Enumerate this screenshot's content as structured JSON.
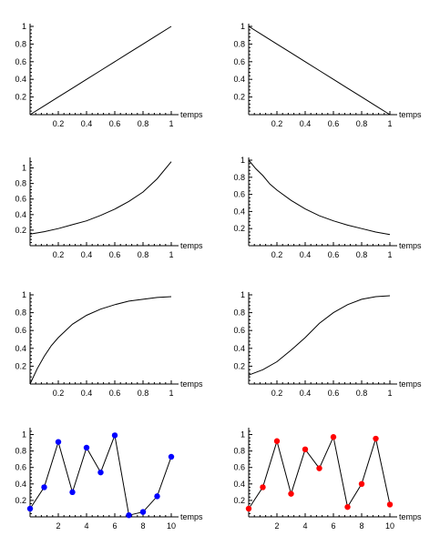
{
  "chart_data": [
    {
      "type": "line",
      "xlabel": "temps",
      "xlim": [
        0,
        1
      ],
      "ylim": [
        0,
        1
      ],
      "x_ticks": [
        0.2,
        0.4,
        0.6,
        0.8,
        1
      ],
      "x_tick_labels": [
        "0.2",
        "0.4",
        "0.6",
        "0.8",
        "1"
      ],
      "y_ticks": [
        0.2,
        0.4,
        0.6,
        0.8,
        1
      ],
      "y_tick_labels": [
        "0.2",
        "0.4",
        "0.6",
        "0.8",
        "1"
      ],
      "x": [
        0,
        0.1,
        0.2,
        0.3,
        0.4,
        0.5,
        0.6,
        0.7,
        0.8,
        0.9,
        1
      ],
      "y": [
        0,
        0.1,
        0.2,
        0.3,
        0.4,
        0.5,
        0.6,
        0.7,
        0.8,
        0.9,
        1
      ]
    },
    {
      "type": "line",
      "xlabel": "temps",
      "xlim": [
        0,
        1
      ],
      "ylim": [
        0,
        1
      ],
      "x_ticks": [
        0.2,
        0.4,
        0.6,
        0.8,
        1
      ],
      "x_tick_labels": [
        "0.2",
        "0.4",
        "0.6",
        "0.8",
        "1"
      ],
      "y_ticks": [
        0.2,
        0.4,
        0.6,
        0.8,
        1
      ],
      "y_tick_labels": [
        "0.2",
        "0.4",
        "0.6",
        "0.8",
        "1"
      ],
      "x": [
        0,
        0.1,
        0.2,
        0.3,
        0.4,
        0.5,
        0.6,
        0.7,
        0.8,
        0.9,
        1
      ],
      "y": [
        1,
        0.9,
        0.8,
        0.7,
        0.6,
        0.5,
        0.4,
        0.3,
        0.2,
        0.1,
        0
      ]
    },
    {
      "type": "line",
      "xlabel": "temps",
      "xlim": [
        0,
        1
      ],
      "ylim": [
        0,
        1.1
      ],
      "x_ticks": [
        0.2,
        0.4,
        0.6,
        0.8,
        1
      ],
      "x_tick_labels": [
        "0.2",
        "0.4",
        "0.6",
        "0.8",
        "1"
      ],
      "y_ticks": [
        0.2,
        0.4,
        0.6,
        0.8,
        1
      ],
      "y_tick_labels": [
        "0.2",
        "0.4",
        "0.6",
        "0.8",
        "1"
      ],
      "x": [
        0,
        0.1,
        0.2,
        0.3,
        0.4,
        0.5,
        0.6,
        0.7,
        0.8,
        0.9,
        1
      ],
      "y": [
        0.15,
        0.18,
        0.22,
        0.27,
        0.32,
        0.39,
        0.47,
        0.57,
        0.69,
        0.86,
        1.08
      ]
    },
    {
      "type": "line",
      "xlabel": "temps",
      "xlim": [
        0,
        1
      ],
      "ylim": [
        0,
        1
      ],
      "x_ticks": [
        0.2,
        0.4,
        0.6,
        0.8,
        1
      ],
      "x_tick_labels": [
        "0.2",
        "0.4",
        "0.6",
        "0.8",
        "1"
      ],
      "y_ticks": [
        0.2,
        0.4,
        0.6,
        0.8,
        1
      ],
      "y_tick_labels": [
        "0.2",
        "0.4",
        "0.6",
        "0.8",
        "1"
      ],
      "x": [
        0,
        0.05,
        0.1,
        0.15,
        0.2,
        0.3,
        0.4,
        0.5,
        0.6,
        0.7,
        0.8,
        0.9,
        1
      ],
      "y": [
        1,
        0.9,
        0.82,
        0.72,
        0.65,
        0.53,
        0.43,
        0.35,
        0.29,
        0.24,
        0.2,
        0.16,
        0.13
      ]
    },
    {
      "type": "line",
      "xlabel": "temps",
      "xlim": [
        0,
        1
      ],
      "ylim": [
        0,
        1
      ],
      "x_ticks": [
        0.2,
        0.4,
        0.6,
        0.8,
        1
      ],
      "x_tick_labels": [
        "0.2",
        "0.4",
        "0.6",
        "0.8",
        "1"
      ],
      "y_ticks": [
        0.2,
        0.4,
        0.6,
        0.8,
        1
      ],
      "y_tick_labels": [
        "0.2",
        "0.4",
        "0.6",
        "0.8",
        "1"
      ],
      "x": [
        0,
        0.05,
        0.1,
        0.15,
        0.2,
        0.3,
        0.4,
        0.5,
        0.6,
        0.7,
        0.8,
        0.9,
        1
      ],
      "y": [
        0,
        0.17,
        0.31,
        0.43,
        0.52,
        0.67,
        0.77,
        0.84,
        0.89,
        0.93,
        0.95,
        0.97,
        0.98
      ]
    },
    {
      "type": "line",
      "xlabel": "temps",
      "xlim": [
        0,
        1
      ],
      "ylim": [
        0,
        1
      ],
      "x_ticks": [
        0.2,
        0.4,
        0.6,
        0.8,
        1
      ],
      "x_tick_labels": [
        "0.2",
        "0.4",
        "0.6",
        "0.8",
        "1"
      ],
      "y_ticks": [
        0.2,
        0.4,
        0.6,
        0.8,
        1
      ],
      "y_tick_labels": [
        "0.2",
        "0.4",
        "0.6",
        "0.8",
        "1"
      ],
      "x": [
        0,
        0.1,
        0.2,
        0.3,
        0.4,
        0.5,
        0.6,
        0.7,
        0.8,
        0.9,
        1
      ],
      "y": [
        0.1,
        0.16,
        0.25,
        0.38,
        0.52,
        0.68,
        0.8,
        0.89,
        0.95,
        0.98,
        0.99
      ]
    },
    {
      "type": "line",
      "xlabel": "temps",
      "xlim": [
        0,
        10
      ],
      "ylim": [
        0,
        1.05
      ],
      "x_ticks": [
        2,
        4,
        6,
        8,
        10
      ],
      "x_tick_labels": [
        "2",
        "4",
        "6",
        "8",
        "10"
      ],
      "y_ticks": [
        0.2,
        0.4,
        0.6,
        0.8,
        1
      ],
      "y_tick_labels": [
        "0.2",
        "0.4",
        "0.6",
        "0.8",
        "1"
      ],
      "marker_color": "#0000ff",
      "x": [
        0,
        1,
        2,
        3,
        4,
        5,
        6,
        7,
        8,
        9,
        10
      ],
      "y": [
        0.1,
        0.36,
        0.91,
        0.3,
        0.84,
        0.54,
        0.99,
        0.02,
        0.06,
        0.25,
        0.73
      ]
    },
    {
      "type": "line",
      "xlabel": "temps",
      "xlim": [
        0,
        10
      ],
      "ylim": [
        0,
        1.05
      ],
      "x_ticks": [
        2,
        4,
        6,
        8,
        10
      ],
      "x_tick_labels": [
        "2",
        "4",
        "6",
        "8",
        "10"
      ],
      "y_ticks": [
        0.2,
        0.4,
        0.6,
        0.8,
        1
      ],
      "y_tick_labels": [
        "0.2",
        "0.4",
        "0.6",
        "0.8",
        "1"
      ],
      "marker_color": "#ff0000",
      "x": [
        0,
        1,
        2,
        3,
        4,
        5,
        6,
        7,
        8,
        9,
        10
      ],
      "y": [
        0.1,
        0.36,
        0.92,
        0.28,
        0.82,
        0.59,
        0.97,
        0.12,
        0.4,
        0.95,
        0.15
      ]
    }
  ]
}
